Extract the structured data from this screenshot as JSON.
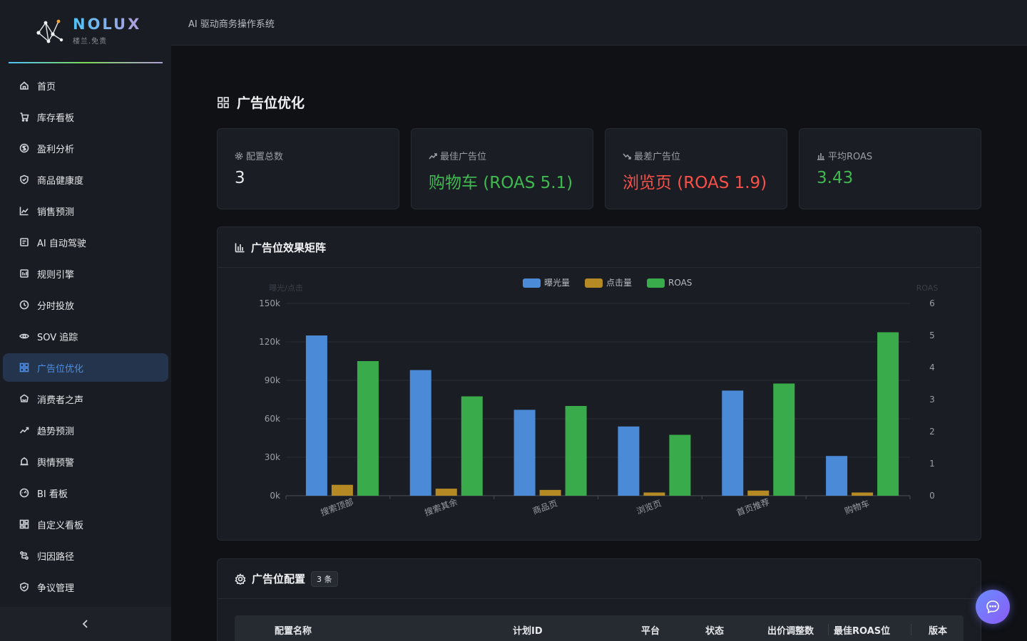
{
  "brand": {
    "name": "NOLUX",
    "subtitle": "楼兰.免责"
  },
  "header": {
    "title": "AI 驱动商务操作系统"
  },
  "sidebar": {
    "items": [
      {
        "label": "首页",
        "icon": "home-icon"
      },
      {
        "label": "库存看板",
        "icon": "cart-icon"
      },
      {
        "label": "盈利分析",
        "icon": "dollar-icon"
      },
      {
        "label": "商品健康度",
        "icon": "shield-check-icon"
      },
      {
        "label": "销售预测",
        "icon": "line-chart-icon"
      },
      {
        "label": "AI 自动驾驶",
        "icon": "robot-icon"
      },
      {
        "label": "规则引擎",
        "icon": "rules-icon"
      },
      {
        "label": "分时投放",
        "icon": "clock-icon"
      },
      {
        "label": "SOV 追踪",
        "icon": "eye-icon"
      },
      {
        "label": "广告位优化",
        "icon": "grid-icon",
        "active": true
      },
      {
        "label": "消费者之声",
        "icon": "crown-icon"
      },
      {
        "label": "趋势预测",
        "icon": "trend-icon"
      },
      {
        "label": "舆情预警",
        "icon": "alarm-icon"
      },
      {
        "label": "BI 看板",
        "icon": "dashboard-icon"
      },
      {
        "label": "自定义看板",
        "icon": "layout-icon"
      },
      {
        "label": "归因路径",
        "icon": "path-icon"
      },
      {
        "label": "争议管理",
        "icon": "shield-icon"
      }
    ]
  },
  "page": {
    "title": "广告位优化"
  },
  "stats": [
    {
      "label": "配置总数",
      "value": "3",
      "color": "#e6e8eb",
      "icon": "gear-icon"
    },
    {
      "label": "最佳广告位",
      "value": "购物车 (ROAS 5.1)",
      "color": "#3fb950",
      "icon": "trend-up-icon"
    },
    {
      "label": "最差广告位",
      "value": "浏览页 (ROAS 1.9)",
      "color": "#f85149",
      "icon": "trend-down-icon"
    },
    {
      "label": "平均ROAS",
      "value": "3.43",
      "color": "#3fb950",
      "icon": "bar-chart-icon"
    }
  ],
  "matrix_panel": {
    "title": "广告位效果矩阵"
  },
  "chart_data": {
    "type": "bar",
    "categories": [
      "搜索顶部",
      "搜索其余",
      "商品页",
      "浏览页",
      "首页推荐",
      "购物车"
    ],
    "series": [
      {
        "name": "曝光量",
        "axis": "left",
        "color": "#4a8ad6",
        "values": [
          125000,
          98000,
          67000,
          54000,
          82000,
          31000
        ]
      },
      {
        "name": "点击量",
        "axis": "left",
        "color": "#b58a24",
        "values": [
          8500,
          5500,
          4500,
          2500,
          4000,
          2500
        ]
      },
      {
        "name": "ROAS",
        "axis": "right",
        "color": "#3aab4a",
        "values": [
          4.2,
          3.1,
          2.8,
          1.9,
          3.5,
          5.1
        ]
      }
    ],
    "ylabel": "曝光/点击",
    "y2label": "ROAS",
    "ylim": [
      0,
      150000
    ],
    "y2lim": [
      0,
      6
    ],
    "yticks": [
      "0k",
      "30k",
      "60k",
      "90k",
      "120k",
      "150k"
    ],
    "y2ticks": [
      "0",
      "1",
      "2",
      "3",
      "4",
      "5",
      "6"
    ],
    "grid": true,
    "legend": "top-center"
  },
  "config_panel": {
    "title": "广告位配置",
    "count": "3 条",
    "columns": [
      "配置名称",
      "计划ID",
      "平台",
      "状态",
      "出价调整数",
      "最佳ROAS位",
      "版本"
    ]
  }
}
